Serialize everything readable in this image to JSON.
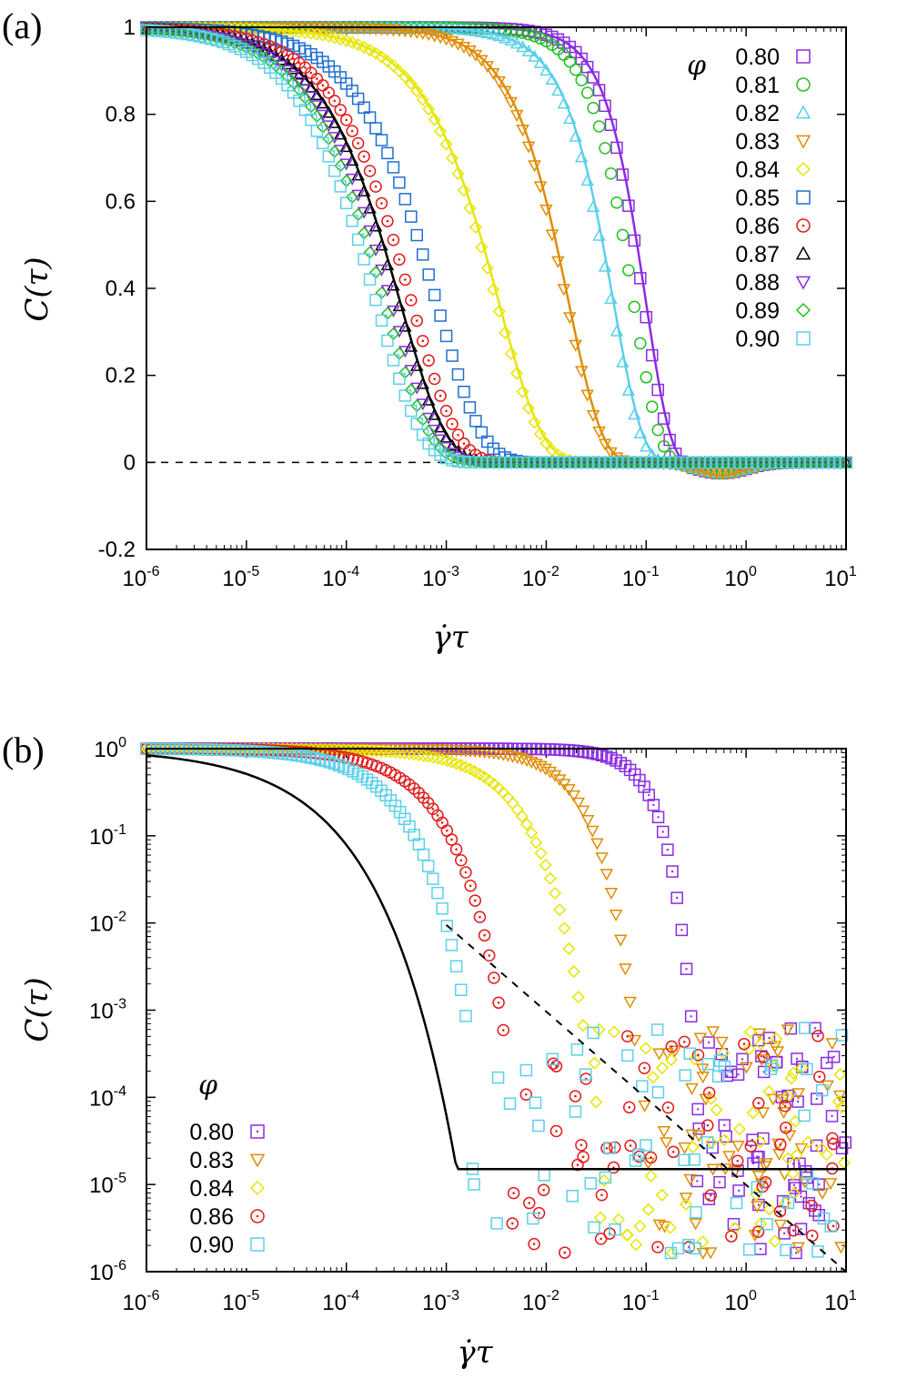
{
  "chart_data": [
    {
      "panel": "(a)",
      "type": "scatter",
      "xscale": "log",
      "yscale": "linear",
      "xlim": [
        1e-06,
        10
      ],
      "ylim": [
        -0.2,
        1.0
      ],
      "xlabel": "γ̇τ",
      "ylabel": "C(τ)",
      "x_tick_labels": [
        {
          "base": "10",
          "exp": "-6"
        },
        {
          "base": "10",
          "exp": "-5"
        },
        {
          "base": "10",
          "exp": "-4"
        },
        {
          "base": "10",
          "exp": "-3"
        },
        {
          "base": "10",
          "exp": "-2"
        },
        {
          "base": "10",
          "exp": "-1"
        },
        {
          "base": "10",
          "exp": "0"
        },
        {
          "base": "10",
          "exp": "1"
        }
      ],
      "y_ticks": [
        -0.2,
        0,
        0.2,
        0.4,
        0.6,
        0.8,
        1
      ],
      "y_tick_labels": [
        "-0.2",
        "0",
        "0.2",
        "0.4",
        "0.6",
        "0.8",
        "1"
      ],
      "legend_title": "φ",
      "legend_position": "top-right",
      "reference_line": {
        "y": 0,
        "style": "dashed"
      },
      "series": [
        {
          "name": "0.80",
          "color": "#8a2be2",
          "marker": "square",
          "tau0": 0.095,
          "beta": 1.8,
          "fit": true
        },
        {
          "name": "0.81",
          "color": "#22c022",
          "marker": "circle",
          "tau0": 0.075,
          "beta": 1.7
        },
        {
          "name": "0.82",
          "color": "#5bd0ea",
          "marker": "triangle-up",
          "tau0": 0.045,
          "beta": 1.5,
          "fit": true
        },
        {
          "name": "0.83",
          "color": "#e08c00",
          "marker": "triangle-down",
          "tau0": 0.016,
          "beta": 1.3,
          "fit": true
        },
        {
          "name": "0.84",
          "color": "#e6e600",
          "marker": "diamond",
          "tau0": 0.0032,
          "beta": 1.0,
          "fit": true
        },
        {
          "name": "0.85",
          "color": "#1f6fd0",
          "marker": "square",
          "tau0": 0.0008,
          "beta": 0.95
        },
        {
          "name": "0.86",
          "color": "#e21b1b",
          "marker": "circle-dot",
          "tau0": 0.00045,
          "beta": 0.95
        },
        {
          "name": "0.87",
          "color": "#000000",
          "marker": "triangle-up",
          "tau0": 0.00033,
          "beta": 0.95,
          "fit": true
        },
        {
          "name": "0.88",
          "color": "#8a2be2",
          "marker": "triangle-down",
          "tau0": 0.00028,
          "beta": 0.95
        },
        {
          "name": "0.89",
          "color": "#22c022",
          "marker": "diamond",
          "tau0": 0.00024,
          "beta": 0.95
        },
        {
          "name": "0.90",
          "color": "#5bd0ea",
          "marker": "square",
          "tau0": 0.0002,
          "beta": 0.95
        }
      ]
    },
    {
      "panel": "(b)",
      "type": "scatter",
      "xscale": "log",
      "yscale": "log",
      "xlim": [
        1e-06,
        10
      ],
      "ylim": [
        1e-06,
        1
      ],
      "xlabel": "γ̇τ",
      "ylabel": "C(τ)",
      "x_tick_labels": [
        {
          "base": "10",
          "exp": "-6"
        },
        {
          "base": "10",
          "exp": "-5"
        },
        {
          "base": "10",
          "exp": "-4"
        },
        {
          "base": "10",
          "exp": "-3"
        },
        {
          "base": "10",
          "exp": "-2"
        },
        {
          "base": "10",
          "exp": "-1"
        },
        {
          "base": "10",
          "exp": "0"
        },
        {
          "base": "10",
          "exp": "1"
        }
      ],
      "y_tick_labels": [
        {
          "base": "10",
          "exp": "0"
        },
        {
          "base": "10",
          "exp": "-1"
        },
        {
          "base": "10",
          "exp": "-2"
        },
        {
          "base": "10",
          "exp": "-3"
        },
        {
          "base": "10",
          "exp": "-4"
        },
        {
          "base": "10",
          "exp": "-5"
        },
        {
          "base": "10",
          "exp": "-6"
        }
      ],
      "legend_title": "φ",
      "legend_position": "bottom-left",
      "fit_line": {
        "style": "solid",
        "color": "#000000",
        "tau0": 2e-05,
        "beta": 0.58
      },
      "guide_line": {
        "style": "dashed",
        "color": "#000000",
        "x": [
          0.001,
          10
        ],
        "y": [
          0.0095,
          1e-06
        ]
      },
      "series": [
        {
          "name": "0.80",
          "color": "#8a2be2",
          "marker": "square-dot",
          "tau0": 0.095,
          "beta": 1.8
        },
        {
          "name": "0.83",
          "color": "#e08c00",
          "marker": "triangle-down",
          "tau0": 0.016,
          "beta": 1.3
        },
        {
          "name": "0.84",
          "color": "#e6e600",
          "marker": "diamond",
          "tau0": 0.0032,
          "beta": 1.0
        },
        {
          "name": "0.86",
          "color": "#e21b1b",
          "marker": "circle-dot",
          "tau0": 0.00045,
          "beta": 0.95
        },
        {
          "name": "0.90",
          "color": "#5bd0ea",
          "marker": "square",
          "tau0": 0.0002,
          "beta": 0.95
        }
      ]
    }
  ],
  "panel_labels": [
    "(a)",
    "(b)"
  ]
}
